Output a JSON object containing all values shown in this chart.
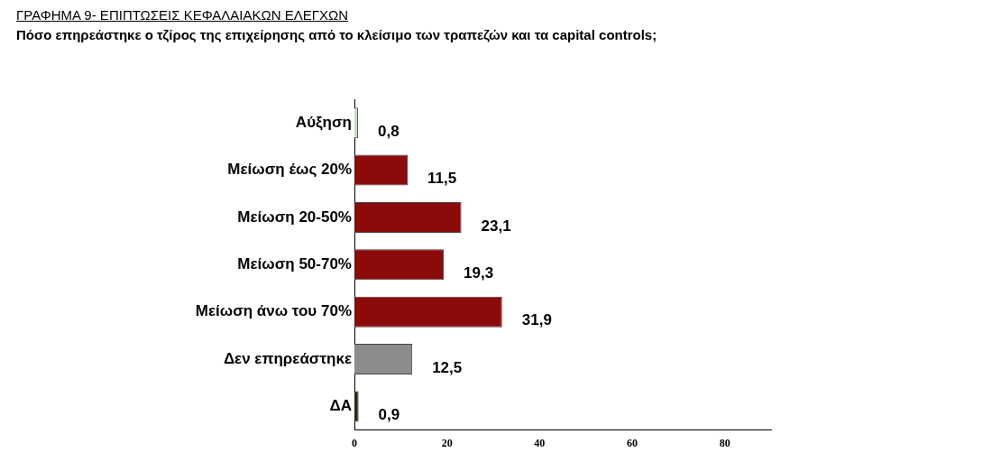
{
  "chart_data": {
    "type": "bar",
    "orientation": "horizontal",
    "title": "ΓΡΑΦΗΜΑ 9- ΕΠΙΠΤΩΣΕΙΣ ΚΕΦΑΛΑΙΑΚΩΝ ΕΛΕΓΧΩΝ",
    "subtitle": "Πόσο επηρεάστηκε ο τζίρος της επιχείρησης από το κλείσιμο των τραπεζών και τα capital controls;",
    "categories": [
      "Αύξηση",
      "Μείωση έως 20%",
      "Μείωση 20-50%",
      "Μείωση 50-70%",
      "Μείωση άνω του 70%",
      "Δεν επηρεάστηκε",
      "ΔΑ"
    ],
    "values": [
      0.8,
      11.5,
      23.1,
      19.3,
      31.9,
      12.5,
      0.9
    ],
    "colors": [
      "#c8dcc8",
      "#8b0a0a",
      "#8b0a0a",
      "#8b0a0a",
      "#8b0a0a",
      "#8c8c8c",
      "#2a2a10"
    ],
    "value_labels": [
      "0,8",
      "11,5",
      "23,1",
      "19,3",
      "31,9",
      "12,5",
      "0,9"
    ],
    "xlim": [
      0,
      90
    ],
    "xticks": [
      0,
      20,
      40,
      60,
      80
    ],
    "grid": false,
    "legend": false
  }
}
